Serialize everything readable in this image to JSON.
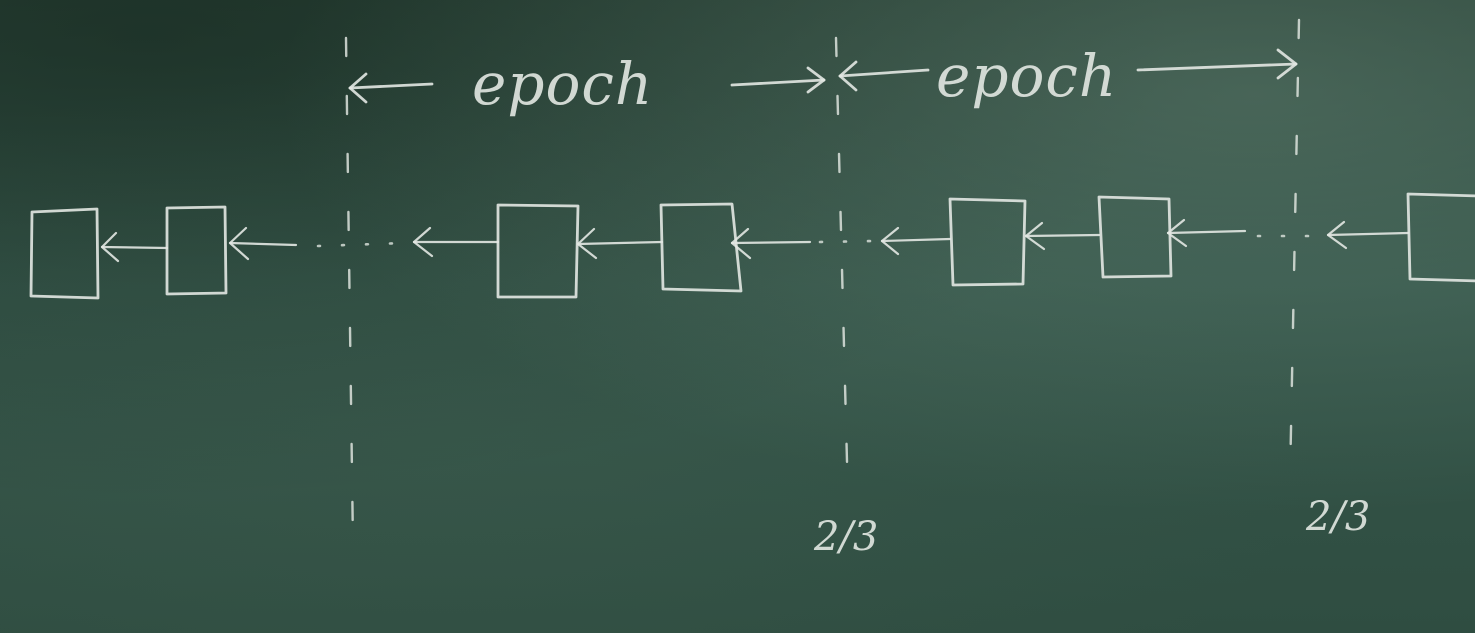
{
  "labels": {
    "epoch_1": "epoch",
    "epoch_2": "epoch",
    "threshold_1": "2/3",
    "threshold_2": "2/3"
  },
  "colors": {
    "board": "#2f4d41",
    "chalk": "#e3e8e3"
  }
}
